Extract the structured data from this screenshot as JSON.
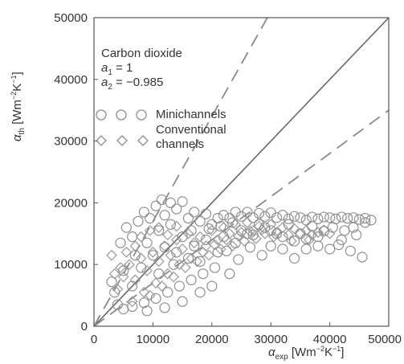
{
  "chart_data": {
    "type": "scatter",
    "title": "",
    "xlabel": {
      "symbol": "α",
      "sub": "exp",
      "unit_prefix": " [Wm",
      "unit_exp1": "−2",
      "unit_mid": "K",
      "unit_exp2": "−1",
      "unit_suffix": "]"
    },
    "ylabel": {
      "symbol": "α",
      "sub": "th",
      "unit_prefix": " [Wm",
      "unit_exp1": "−2",
      "unit_mid": "K",
      "unit_exp2": "−1",
      "unit_suffix": "]"
    },
    "xlim": [
      0,
      50000
    ],
    "ylim": [
      0,
      50000
    ],
    "x_ticks": [
      "0",
      "10000",
      "20000",
      "30000",
      "40000",
      "50000"
    ],
    "y_ticks": [
      "0",
      "10000",
      "20000",
      "30000",
      "40000",
      "50000"
    ],
    "x_tick_values": [
      0,
      10000,
      20000,
      30000,
      40000,
      50000
    ],
    "y_tick_values": [
      0,
      10000,
      20000,
      30000,
      40000,
      50000
    ],
    "grid": false,
    "annotation": {
      "fluid": "Carbon dioxide",
      "a1_symbol": "a",
      "a1_sub": "1",
      "a1_value": " = 1",
      "a2_symbol": "a",
      "a2_sub": "2",
      "a2_value": " = −0.985"
    },
    "legend": {
      "placement": "upper-left",
      "entries": [
        {
          "name_lines": [
            "Minichannels"
          ],
          "marker": "circle"
        },
        {
          "name_lines": [
            "Conventional",
            "channels"
          ],
          "marker": "diamond"
        }
      ]
    },
    "reference_lines": [
      {
        "style": "solid",
        "slope": 1
      },
      {
        "style": "dashed",
        "slope": 1.7
      },
      {
        "style": "dashed",
        "slope": 0.7
      }
    ],
    "series": [
      {
        "marker": "circle",
        "points": [
          [
            3000,
            7200
          ],
          [
            4500,
            13500
          ],
          [
            5500,
            16000
          ],
          [
            6500,
            14500
          ],
          [
            7500,
            17000
          ],
          [
            8500,
            18500
          ],
          [
            9500,
            17500
          ],
          [
            10500,
            19500
          ],
          [
            11500,
            20500
          ],
          [
            12000,
            18000
          ],
          [
            13000,
            20000
          ],
          [
            14000,
            19000
          ],
          [
            15000,
            20200
          ],
          [
            16000,
            17500
          ],
          [
            17000,
            18500
          ],
          [
            18000,
            17000
          ],
          [
            19000,
            18200
          ],
          [
            20000,
            16500
          ],
          [
            21000,
            17500
          ],
          [
            22000,
            18000
          ],
          [
            23000,
            17500
          ],
          [
            24000,
            18500
          ],
          [
            25000,
            17800
          ],
          [
            26000,
            18500
          ],
          [
            27000,
            17600
          ],
          [
            28000,
            18300
          ],
          [
            29000,
            17800
          ],
          [
            30000,
            18400
          ],
          [
            31000,
            17600
          ],
          [
            32000,
            18000
          ],
          [
            33000,
            17400
          ],
          [
            34000,
            17800
          ],
          [
            35000,
            17600
          ],
          [
            36000,
            17200
          ],
          [
            37000,
            17700
          ],
          [
            38000,
            17400
          ],
          [
            39000,
            17700
          ],
          [
            40000,
            17600
          ],
          [
            41000,
            17400
          ],
          [
            42000,
            17700
          ],
          [
            43000,
            17500
          ],
          [
            44000,
            17600
          ],
          [
            45000,
            17300
          ],
          [
            46000,
            17500
          ],
          [
            47000,
            17200
          ],
          [
            40500,
            16000
          ],
          [
            42500,
            15500
          ],
          [
            44500,
            14800
          ],
          [
            41500,
            13200
          ],
          [
            43500,
            12200
          ],
          [
            45500,
            11200
          ],
          [
            38000,
            14500
          ],
          [
            36000,
            12500
          ],
          [
            34000,
            11000
          ],
          [
            32000,
            12500
          ],
          [
            30000,
            13000
          ],
          [
            28500,
            11500
          ],
          [
            26500,
            12800
          ],
          [
            24500,
            10800
          ],
          [
            22500,
            12200
          ],
          [
            20500,
            9500
          ],
          [
            18500,
            8500
          ],
          [
            16500,
            7500
          ],
          [
            14500,
            6500
          ],
          [
            12500,
            5500
          ],
          [
            10500,
            4500
          ],
          [
            8500,
            3800
          ],
          [
            6500,
            3200
          ],
          [
            5000,
            2800
          ],
          [
            4000,
            3500
          ],
          [
            9000,
            2500
          ],
          [
            12000,
            3000
          ],
          [
            15000,
            4000
          ],
          [
            18000,
            5500
          ],
          [
            20000,
            6500
          ],
          [
            23000,
            8500
          ],
          [
            7000,
            11500
          ],
          [
            9000,
            13500
          ],
          [
            11000,
            15500
          ],
          [
            13000,
            16500
          ],
          [
            15000,
            14500
          ],
          [
            17000,
            13000
          ],
          [
            19000,
            14000
          ],
          [
            21000,
            12000
          ],
          [
            25000,
            15500
          ],
          [
            27000,
            14800
          ],
          [
            29000,
            16000
          ],
          [
            31000,
            15000
          ],
          [
            33000,
            16500
          ],
          [
            35000,
            15000
          ],
          [
            37000,
            16200
          ],
          [
            39000,
            15400
          ],
          [
            3500,
            5500
          ],
          [
            5000,
            9000
          ],
          [
            6500,
            6500
          ],
          [
            8000,
            9500
          ],
          [
            10000,
            11500
          ],
          [
            11000,
            8500
          ],
          [
            13500,
            10000
          ],
          [
            16000,
            11000
          ],
          [
            18000,
            10500
          ],
          [
            22000,
            14500
          ],
          [
            24000,
            13500
          ],
          [
            26000,
            15000
          ],
          [
            28000,
            16500
          ],
          [
            30000,
            15500
          ],
          [
            32000,
            14500
          ],
          [
            34000,
            13800
          ],
          [
            36000,
            14200
          ],
          [
            38000,
            13000
          ],
          [
            40000,
            12500
          ],
          [
            42000,
            14000
          ],
          [
            44000,
            16000
          ],
          [
            46000,
            16800
          ],
          [
            14000,
            12000
          ],
          [
            12000,
            12800
          ],
          [
            16500,
            15500
          ],
          [
            19500,
            15800
          ],
          [
            21500,
            16200
          ],
          [
            23500,
            16800
          ]
        ]
      },
      {
        "marker": "diamond",
        "points": [
          [
            3000,
            11500
          ],
          [
            4000,
            6000
          ],
          [
            5000,
            8000
          ],
          [
            6000,
            10000
          ],
          [
            7000,
            7500
          ],
          [
            8000,
            11000
          ],
          [
            9000,
            9000
          ],
          [
            10000,
            12000
          ],
          [
            11000,
            10500
          ],
          [
            12000,
            13000
          ],
          [
            13000,
            11500
          ],
          [
            14000,
            14000
          ],
          [
            15000,
            12500
          ],
          [
            16000,
            15000
          ],
          [
            17000,
            13500
          ],
          [
            18000,
            14500
          ],
          [
            19000,
            13000
          ],
          [
            20000,
            15500
          ],
          [
            21000,
            14000
          ],
          [
            22000,
            16000
          ],
          [
            23000,
            15000
          ],
          [
            24000,
            16500
          ],
          [
            25000,
            15200
          ],
          [
            26000,
            16800
          ],
          [
            27000,
            15500
          ],
          [
            28000,
            16200
          ],
          [
            29000,
            15000
          ],
          [
            30000,
            16500
          ],
          [
            31000,
            15200
          ],
          [
            32000,
            16000
          ],
          [
            33000,
            14800
          ],
          [
            34000,
            15800
          ],
          [
            35000,
            15000
          ],
          [
            36000,
            15500
          ],
          [
            37000,
            14800
          ],
          [
            38000,
            15200
          ],
          [
            39000,
            15600
          ],
          [
            40000,
            15000
          ],
          [
            9500,
            5000
          ],
          [
            11500,
            6500
          ],
          [
            13500,
            8000
          ],
          [
            15500,
            9500
          ],
          [
            17500,
            10500
          ],
          [
            19500,
            11500
          ],
          [
            21500,
            12500
          ],
          [
            23500,
            13000
          ],
          [
            25500,
            13800
          ],
          [
            27500,
            14200
          ],
          [
            6500,
            4000
          ],
          [
            8500,
            5500
          ],
          [
            10500,
            7000
          ],
          [
            12500,
            8500
          ],
          [
            14500,
            10000
          ],
          [
            16500,
            11000
          ],
          [
            18500,
            12000
          ],
          [
            20500,
            13200
          ],
          [
            22500,
            14000
          ],
          [
            24500,
            14600
          ],
          [
            26500,
            15400
          ],
          [
            28500,
            15600
          ],
          [
            7000,
            13000
          ],
          [
            8000,
            14500
          ],
          [
            9500,
            15500
          ],
          [
            11000,
            16000
          ],
          [
            12500,
            14800
          ],
          [
            14000,
            16200
          ],
          [
            5500,
            12000
          ],
          [
            4500,
            9500
          ],
          [
            3500,
            8500
          ],
          [
            30500,
            14500
          ],
          [
            33500,
            13800
          ],
          [
            36500,
            14000
          ]
        ]
      }
    ]
  }
}
